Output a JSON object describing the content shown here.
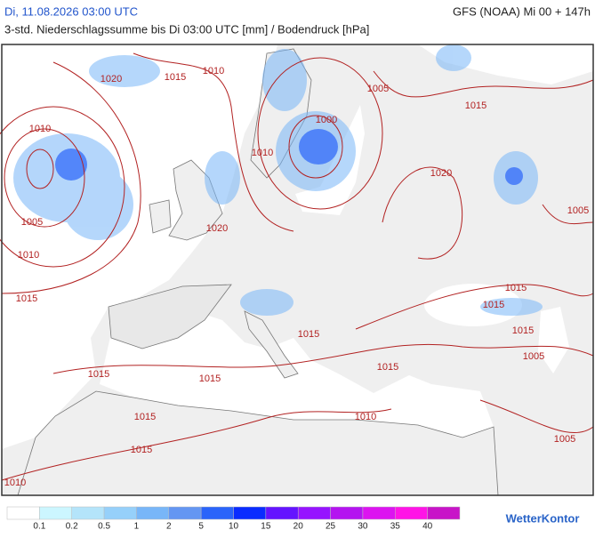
{
  "header": {
    "date": "Di, 11.08.2026 03:00 UTC",
    "model": "GFS (NOAA) Mi 00 + 147h",
    "subtitle": "3-std. Niederschlagssumme bis Di 03:00 UTC [mm] / Bodendruck [hPa]"
  },
  "map": {
    "isobar_labels": [
      1010,
      1015,
      1020,
      1005,
      1015,
      1000,
      1010,
      1010,
      1020,
      1005,
      1020,
      1005,
      1010,
      1015,
      1015,
      1015,
      1015,
      1015,
      1005,
      1015,
      1015,
      1015,
      1015,
      1010,
      1015,
      1005,
      1010
    ],
    "isobar_color": "#b22222"
  },
  "legend": {
    "labels": [
      0.1,
      0.2,
      0.5,
      1,
      2,
      5,
      10,
      15,
      20,
      25,
      30,
      35,
      40
    ],
    "colors": [
      "#ffffff",
      "#ccf6ff",
      "#b4e4fa",
      "#96d0fa",
      "#78b6f8",
      "#6496f2",
      "#2a64fa",
      "#0a2cff",
      "#6414ff",
      "#9614ff",
      "#b414f0",
      "#dc14f0",
      "#ff14e6",
      "#c814c8"
    ]
  },
  "logo": "WetterKontor"
}
